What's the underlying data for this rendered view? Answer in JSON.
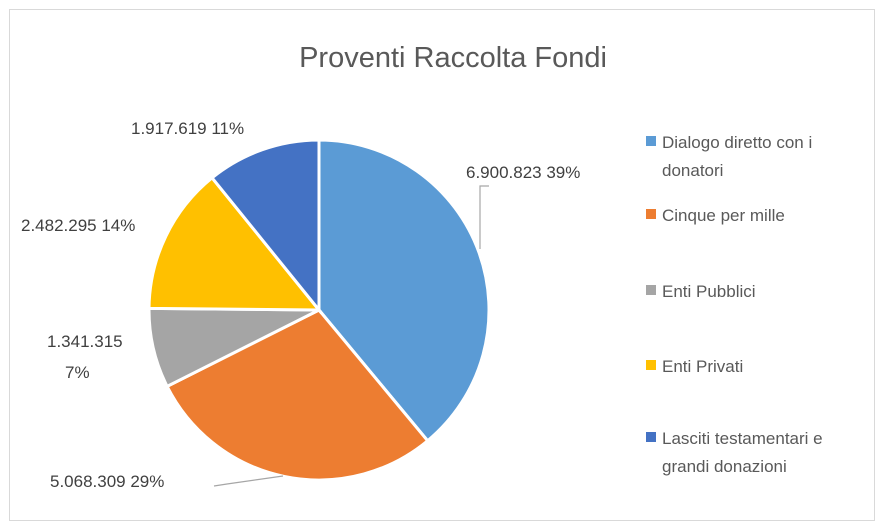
{
  "chart_data": {
    "type": "pie",
    "title": "Proventi Raccolta Fondi",
    "categories": [
      "Dialogo diretto con i donatori",
      "Cinque per mille",
      "Enti Pubblici",
      "Enti Privati",
      "Lasciti testamentari e grandi donazioni"
    ],
    "values": [
      6900823,
      5068309,
      1341315,
      2482295,
      1917619
    ],
    "value_labels": [
      "6.900.823",
      "5.068.309",
      "1.341.315",
      "2.482.295",
      "1.917.619"
    ],
    "percent_labels": [
      "39%",
      "29%",
      "7%",
      "14%",
      "11%"
    ],
    "colors": [
      "#5b9bd5",
      "#ed7d31",
      "#a5a5a5",
      "#ffc000",
      "#4472c4"
    ],
    "legend": {
      "position": "right",
      "lines": [
        [
          "Dialogo diretto con i",
          "donatori"
        ],
        [
          "Cinque per mille"
        ],
        [
          "Enti Pubblici"
        ],
        [
          "Enti Privati"
        ],
        [
          "Lasciti testamentari e",
          "grandi donazioni"
        ]
      ]
    }
  }
}
